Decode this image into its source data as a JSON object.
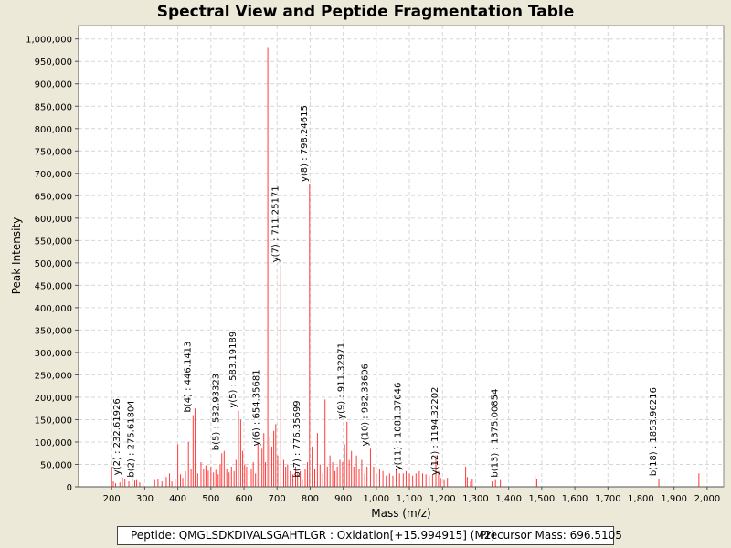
{
  "chart_data": {
    "type": "bar",
    "title": "Spectral View and Peptide Fragmentation Table",
    "xlabel": "Mass (m/z)",
    "ylabel": "Peak Intensity",
    "xlim": [
      100,
      2050
    ],
    "ylim": [
      0,
      1030000
    ],
    "x_ticks": [
      200,
      300,
      400,
      500,
      600,
      700,
      800,
      900,
      1000,
      1100,
      1200,
      1300,
      1400,
      1500,
      1600,
      1700,
      1800,
      1900,
      2000
    ],
    "x_tick_labels": [
      "200",
      "300",
      "400",
      "500",
      "600",
      "700",
      "800",
      "900",
      "1,000",
      "1,100",
      "1,200",
      "1,300",
      "1,400",
      "1,500",
      "1,600",
      "1,700",
      "1,800",
      "1,900",
      "2,000"
    ],
    "y_ticks": [
      0,
      50000,
      100000,
      150000,
      200000,
      250000,
      300000,
      350000,
      400000,
      450000,
      500000,
      550000,
      600000,
      650000,
      700000,
      750000,
      800000,
      850000,
      900000,
      950000,
      1000000
    ],
    "y_tick_labels": [
      "0",
      "50,000",
      "100,000",
      "150,000",
      "200,000",
      "250,000",
      "300,000",
      "350,000",
      "400,000",
      "450,000",
      "500,000",
      "550,000",
      "600,000",
      "650,000",
      "700,000",
      "750,000",
      "800,000",
      "850,000",
      "900,000",
      "950,000",
      "1,000,000"
    ],
    "grid": true,
    "peak_color": "#ff3b3b",
    "annotated_peaks": [
      {
        "label": "y(2) : 232.61926",
        "mz": 232.62,
        "intensity": 20000
      },
      {
        "label": "b(2) : 275.61804",
        "mz": 275.62,
        "intensity": 15000
      },
      {
        "label": "b(4) : 446.1413",
        "mz": 446.14,
        "intensity": 160000
      },
      {
        "label": "b(5) : 532.93323",
        "mz": 532.93,
        "intensity": 75000
      },
      {
        "label": "y(5) : 583.19189",
        "mz": 583.19,
        "intensity": 170000
      },
      {
        "label": "y(6) : 654.35681",
        "mz": 654.36,
        "intensity": 85000
      },
      {
        "label": "y(7) : 711.25171",
        "mz": 711.25,
        "intensity": 495000
      },
      {
        "label": "b(7) : 776.35699",
        "mz": 776.36,
        "intensity": 15000
      },
      {
        "label": "y(8) : 798.24615",
        "mz": 798.25,
        "intensity": 675000
      },
      {
        "label": "y(9) : 911.32971",
        "mz": 911.33,
        "intensity": 145000
      },
      {
        "label": "y(10) : 982.33606",
        "mz": 982.34,
        "intensity": 85000
      },
      {
        "label": "y(11) : 1081.37646",
        "mz": 1081.38,
        "intensity": 30000
      },
      {
        "label": "y(12) : 1194.32202",
        "mz": 1194.32,
        "intensity": 20000
      },
      {
        "label": "b(13) : 1375.00854",
        "mz": 1375.01,
        "intensity": 15000
      },
      {
        "label": "b(18) : 1853.96216",
        "mz": 1853.96,
        "intensity": 18000
      }
    ],
    "other_peaks": [
      [
        200,
        45000
      ],
      [
        205,
        12000
      ],
      [
        212,
        8000
      ],
      [
        225,
        10000
      ],
      [
        240,
        18000
      ],
      [
        252,
        12000
      ],
      [
        262,
        25000
      ],
      [
        270,
        14000
      ],
      [
        285,
        10000
      ],
      [
        295,
        8000
      ],
      [
        330,
        15000
      ],
      [
        340,
        18000
      ],
      [
        352,
        12000
      ],
      [
        365,
        22000
      ],
      [
        375,
        30000
      ],
      [
        382,
        12000
      ],
      [
        392,
        18000
      ],
      [
        400,
        95000
      ],
      [
        408,
        28000
      ],
      [
        415,
        20000
      ],
      [
        423,
        35000
      ],
      [
        432,
        100000
      ],
      [
        440,
        40000
      ],
      [
        452,
        175000
      ],
      [
        460,
        30000
      ],
      [
        470,
        55000
      ],
      [
        478,
        40000
      ],
      [
        485,
        48000
      ],
      [
        492,
        36000
      ],
      [
        500,
        45000
      ],
      [
        508,
        32000
      ],
      [
        515,
        38000
      ],
      [
        522,
        28000
      ],
      [
        528,
        50000
      ],
      [
        540,
        80000
      ],
      [
        548,
        40000
      ],
      [
        555,
        32000
      ],
      [
        562,
        45000
      ],
      [
        570,
        35000
      ],
      [
        576,
        60000
      ],
      [
        590,
        150000
      ],
      [
        596,
        80000
      ],
      [
        602,
        50000
      ],
      [
        608,
        45000
      ],
      [
        615,
        35000
      ],
      [
        622,
        40000
      ],
      [
        628,
        55000
      ],
      [
        635,
        30000
      ],
      [
        642,
        95000
      ],
      [
        648,
        60000
      ],
      [
        660,
        120000
      ],
      [
        665,
        55000
      ],
      [
        672,
        980000
      ],
      [
        678,
        110000
      ],
      [
        684,
        90000
      ],
      [
        690,
        125000
      ],
      [
        696,
        140000
      ],
      [
        702,
        70000
      ],
      [
        720,
        60000
      ],
      [
        726,
        45000
      ],
      [
        732,
        50000
      ],
      [
        740,
        35000
      ],
      [
        748,
        28000
      ],
      [
        756,
        45000
      ],
      [
        762,
        30000
      ],
      [
        770,
        35000
      ],
      [
        785,
        40000
      ],
      [
        792,
        55000
      ],
      [
        806,
        90000
      ],
      [
        814,
        40000
      ],
      [
        822,
        120000
      ],
      [
        830,
        50000
      ],
      [
        838,
        30000
      ],
      [
        845,
        195000
      ],
      [
        852,
        45000
      ],
      [
        860,
        70000
      ],
      [
        868,
        55000
      ],
      [
        875,
        35000
      ],
      [
        882,
        45000
      ],
      [
        890,
        60000
      ],
      [
        898,
        55000
      ],
      [
        904,
        95000
      ],
      [
        918,
        60000
      ],
      [
        925,
        80000
      ],
      [
        932,
        45000
      ],
      [
        940,
        70000
      ],
      [
        948,
        40000
      ],
      [
        956,
        60000
      ],
      [
        965,
        30000
      ],
      [
        972,
        45000
      ],
      [
        992,
        45000
      ],
      [
        1000,
        30000
      ],
      [
        1010,
        40000
      ],
      [
        1020,
        35000
      ],
      [
        1030,
        25000
      ],
      [
        1040,
        30000
      ],
      [
        1050,
        25000
      ],
      [
        1060,
        40000
      ],
      [
        1070,
        30000
      ],
      [
        1090,
        35000
      ],
      [
        1100,
        30000
      ],
      [
        1110,
        25000
      ],
      [
        1120,
        30000
      ],
      [
        1130,
        35000
      ],
      [
        1140,
        30000
      ],
      [
        1150,
        28000
      ],
      [
        1160,
        25000
      ],
      [
        1170,
        28000
      ],
      [
        1180,
        70000
      ],
      [
        1188,
        35000
      ],
      [
        1205,
        15000
      ],
      [
        1215,
        20000
      ],
      [
        1270,
        45000
      ],
      [
        1275,
        22000
      ],
      [
        1285,
        12000
      ],
      [
        1290,
        18000
      ],
      [
        1350,
        12000
      ],
      [
        1360,
        15000
      ],
      [
        1480,
        25000
      ],
      [
        1485,
        18000
      ],
      [
        1975,
        30000
      ]
    ]
  },
  "footer": {
    "peptide": "Peptide: QMGLSDKDIVALSGAHTLGR : Oxidation[+15.994915] (M2)",
    "precursor": "Precursor Mass: 696.5105"
  }
}
